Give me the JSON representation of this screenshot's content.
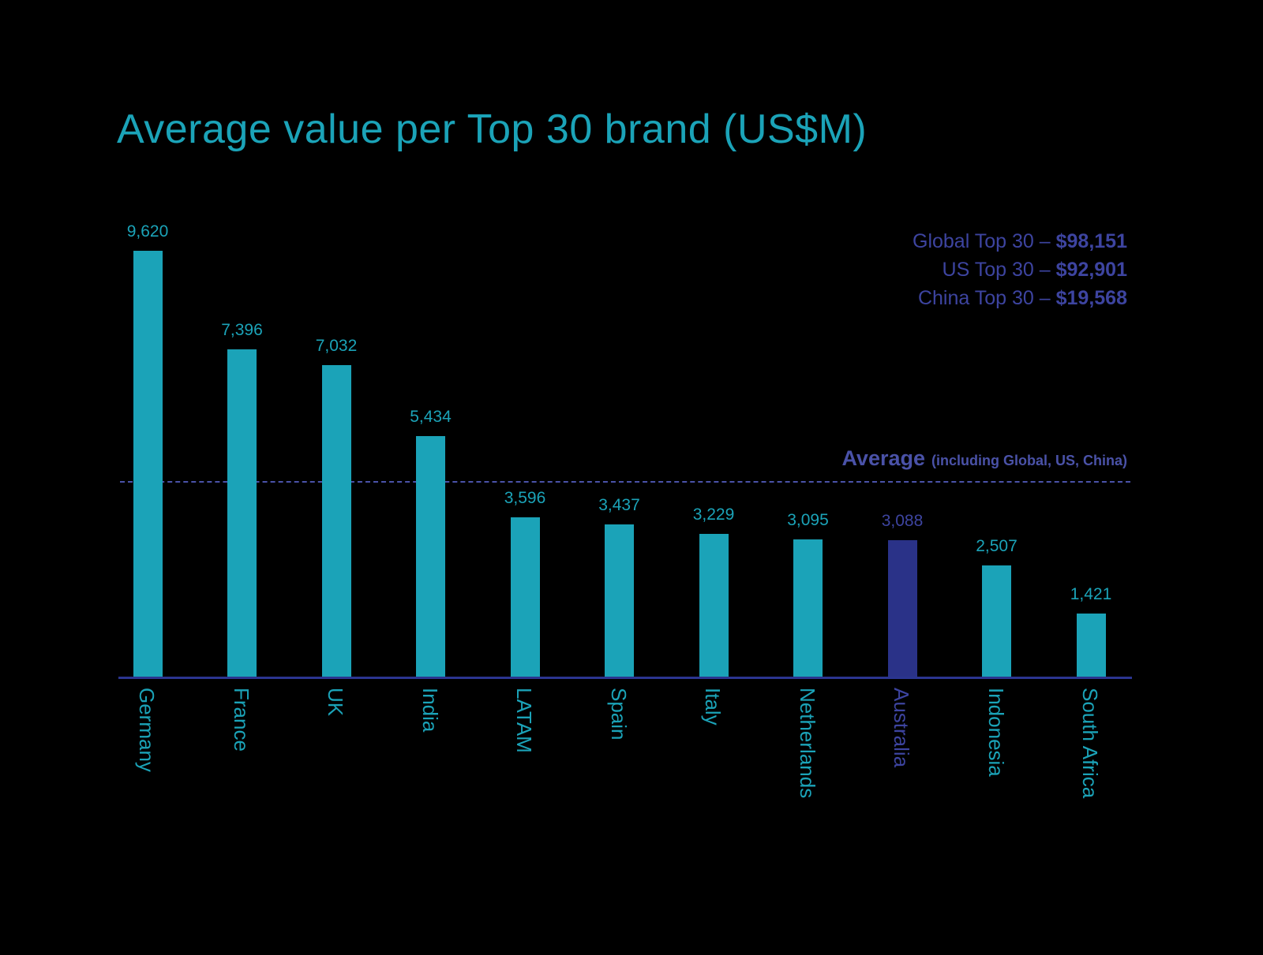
{
  "title": "Average value per Top 30 brand (US$M)",
  "legend": {
    "lines": [
      {
        "label": "Global Top 30 – ",
        "value": "$98,151"
      },
      {
        "label": "US Top 30 – ",
        "value": "$92,901"
      },
      {
        "label": "China Top 30 – ",
        "value": "$19,568"
      }
    ]
  },
  "average_line": {
    "label": "Average",
    "note": "(including Global, US, China)"
  },
  "colors": {
    "teal": "#1BA3B8",
    "purple_bar": "#2A3288",
    "purple_text": "#3D44A0",
    "axis": "#2B3590",
    "dashed": "#4A52A8",
    "background": "#000000"
  },
  "chart_data": {
    "type": "bar",
    "title": "Average value per Top 30 brand (US$M)",
    "categories": [
      "Germany",
      "France",
      "UK",
      "India",
      "LATAM",
      "Spain",
      "Italy",
      "Netherlands",
      "Australia",
      "Indonesia",
      "South Africa"
    ],
    "values": [
      9620,
      7396,
      7032,
      5434,
      3596,
      3437,
      3229,
      3095,
      3088,
      2507,
      1421
    ],
    "value_labels": [
      "9,620",
      "7,396",
      "7,032",
      "5,434",
      "3,596",
      "3,437",
      "3,229",
      "3,095",
      "3,088",
      "2,507",
      "1,421"
    ],
    "highlight_category": "Australia",
    "average_line_value": 4418,
    "xlabel": "",
    "ylabel": "",
    "ylim": [
      0,
      9620
    ],
    "grid": false,
    "legend_position": "top-right",
    "annotations": [
      "Global Top 30 – $98,151",
      "US Top 30 – $92,901",
      "China Top 30 – $19,568",
      "Average (including Global, US, China)"
    ]
  }
}
